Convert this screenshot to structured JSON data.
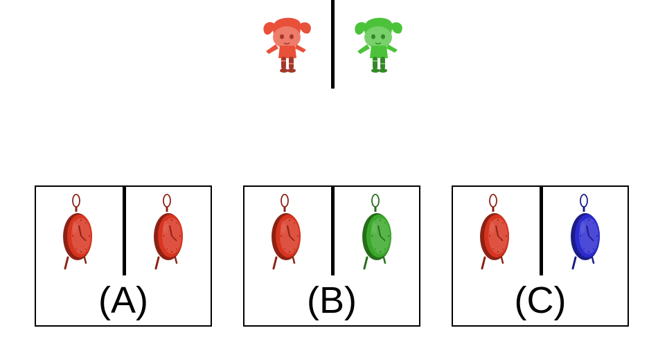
{
  "example": {
    "left_figure": {
      "icon": "cartoon-girl-icon",
      "color": "#e8503a"
    },
    "right_figure": {
      "icon": "cartoon-girl-icon",
      "color": "#4cc23a"
    }
  },
  "options": [
    {
      "label": "(A)",
      "left_clock": {
        "icon": "alarm-clock-icon",
        "color": "#d8341f"
      },
      "right_clock": {
        "icon": "alarm-clock-icon",
        "color": "#d8341f"
      }
    },
    {
      "label": "(B)",
      "left_clock": {
        "icon": "alarm-clock-icon",
        "color": "#d8341f"
      },
      "right_clock": {
        "icon": "alarm-clock-icon",
        "color": "#3aa82a"
      }
    },
    {
      "label": "(C)",
      "left_clock": {
        "icon": "alarm-clock-icon",
        "color": "#d8341f"
      },
      "right_clock": {
        "icon": "alarm-clock-icon",
        "color": "#2b2bd0"
      }
    }
  ]
}
